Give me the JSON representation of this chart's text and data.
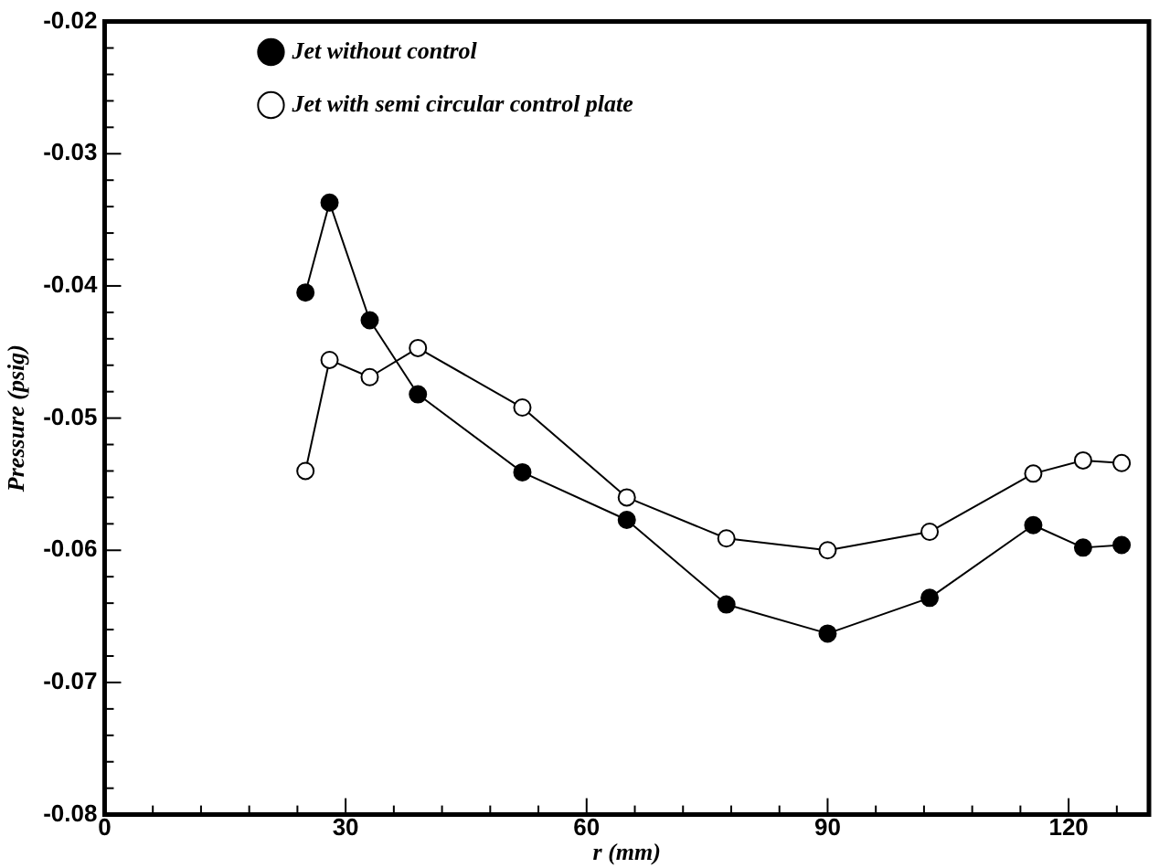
{
  "chart_data": {
    "type": "line",
    "xlabel": "r (mm)",
    "ylabel": "Pressure (psig)",
    "xlim": [
      0,
      130
    ],
    "xticks": [
      0,
      {
        "value": 6,
        "label": null
      },
      {
        "value": 12,
        "label": null
      },
      {
        "value": 18,
        "label": null
      },
      {
        "value": 24,
        "label": null
      },
      30,
      {
        "value": 36,
        "label": null
      },
      {
        "value": 42,
        "label": null
      },
      {
        "value": 48,
        "label": null
      },
      {
        "value": 54,
        "label": null
      },
      60,
      {
        "value": 66,
        "label": null
      },
      {
        "value": 72,
        "label": null
      },
      {
        "value": 78,
        "label": null
      },
      {
        "value": 84,
        "label": null
      },
      90,
      {
        "value": 96,
        "label": null
      },
      {
        "value": 102,
        "label": null
      },
      {
        "value": 108,
        "label": null
      },
      {
        "value": 114,
        "label": null
      },
      120,
      {
        "value": 126,
        "label": null
      }
    ],
    "ylim": [
      -0.08,
      -0.02
    ],
    "yticks": [
      -0.08,
      {
        "value": -0.078,
        "label": null
      },
      {
        "value": -0.076,
        "label": null
      },
      {
        "value": -0.074,
        "label": null
      },
      {
        "value": -0.072,
        "label": null
      },
      -0.07,
      {
        "value": -0.068,
        "label": null
      },
      {
        "value": -0.066,
        "label": null
      },
      {
        "value": -0.064,
        "label": null
      },
      {
        "value": -0.062,
        "label": null
      },
      -0.06,
      {
        "value": -0.058,
        "label": null
      },
      {
        "value": -0.056,
        "label": null
      },
      {
        "value": -0.054,
        "label": null
      },
      {
        "value": -0.052,
        "label": null
      },
      -0.05,
      {
        "value": -0.048,
        "label": null
      },
      {
        "value": -0.046,
        "label": null
      },
      {
        "value": -0.044,
        "label": null
      },
      {
        "value": -0.042,
        "label": null
      },
      -0.04,
      {
        "value": -0.038,
        "label": null
      },
      {
        "value": -0.036,
        "label": null
      },
      {
        "value": -0.034,
        "label": null
      },
      {
        "value": -0.032,
        "label": null
      },
      -0.03,
      {
        "value": -0.028,
        "label": null
      },
      {
        "value": -0.026,
        "label": null
      },
      {
        "value": -0.024,
        "label": null
      },
      {
        "value": -0.022,
        "label": null
      },
      -0.02
    ],
    "grid": false,
    "legend": "top",
    "line_style": "solid",
    "x": [
      25,
      28,
      33,
      39,
      52,
      65,
      77.4,
      90,
      102.7,
      115.6,
      121.8,
      126.6
    ],
    "series": [
      {
        "name": "Jet without control",
        "color": "#000000",
        "marker": "circle",
        "values": [
          -0.0405,
          -0.0337,
          -0.0426,
          -0.0482,
          -0.0541,
          -0.0577,
          -0.0641,
          -0.0663,
          -0.0636,
          -0.0581,
          -0.0598,
          -0.0596
        ]
      },
      {
        "name": "Jet with semi circular control plate",
        "color": "#000000",
        "marker": "circle",
        "values": [
          -0.054,
          -0.0456,
          -0.0469,
          -0.0447,
          -0.0492,
          -0.056,
          -0.0591,
          -0.06,
          -0.0586,
          -0.0542,
          -0.0532,
          -0.0534
        ]
      }
    ]
  }
}
